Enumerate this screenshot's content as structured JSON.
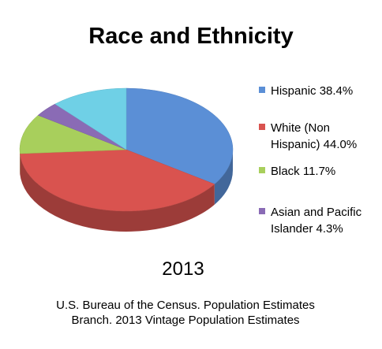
{
  "chart_data": {
    "type": "pie",
    "title": "Race and Ethnicity",
    "subtitle": "2013",
    "note": "U.S. Bureau of the Census. Population Estimates Branch. 2013 Vintage Population Estimates",
    "categories": [
      "Hispanic 38.4%",
      "White (Non Hispanic)  44.0%",
      "Black 11.7%",
      "Asian and Pacific Islander 4.3%",
      null
    ],
    "values": [
      38.4,
      44.0,
      11.7,
      4.3,
      13
    ],
    "colors": [
      "#5b8fd6",
      "#d9534f",
      "#a8cf5c",
      "#8a6bb5",
      "#6fd0e6"
    ]
  }
}
